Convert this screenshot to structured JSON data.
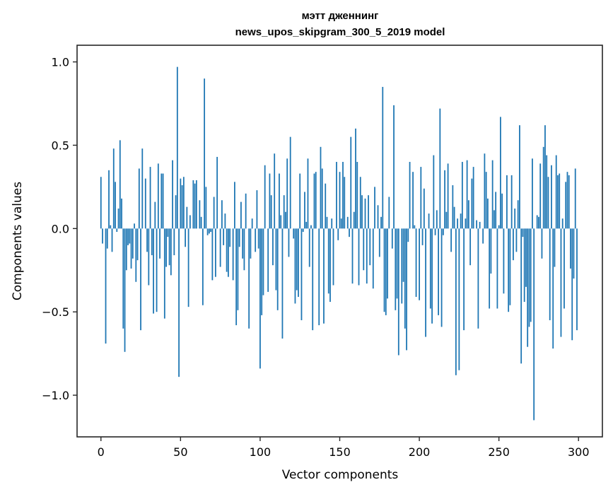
{
  "chart_data": {
    "type": "bar",
    "title": "мэтт дженнинг",
    "subtitle": "news_upos_skipgram_300_5_2019 model",
    "xlabel": "Vector components",
    "ylabel": "Components values",
    "xlim": [
      -15,
      315
    ],
    "ylim": [
      -1.25,
      1.1
    ],
    "x_ticks": [
      0,
      50,
      100,
      150,
      200,
      250,
      300
    ],
    "x_tick_labels": [
      "0",
      "50",
      "100",
      "150",
      "200",
      "250",
      "300"
    ],
    "y_ticks": [
      -1.0,
      -0.5,
      0.0,
      0.5,
      1.0
    ],
    "y_tick_labels": [
      "−1.0",
      "−0.5",
      "0.0",
      "0.5",
      "1.0"
    ],
    "grid": false,
    "bar_color": "#1f77b4",
    "values": [
      0.31,
      -0.09,
      0.0,
      -0.69,
      -0.12,
      0.35,
      0.02,
      -0.14,
      0.48,
      0.28,
      -0.02,
      0.12,
      0.53,
      0.18,
      -0.6,
      -0.74,
      -0.25,
      -0.1,
      -0.09,
      -0.24,
      -0.18,
      0.03,
      -0.32,
      -0.19,
      0.36,
      -0.61,
      0.48,
      0.0,
      0.3,
      -0.14,
      -0.34,
      0.37,
      -0.16,
      -0.51,
      0.16,
      -0.5,
      0.39,
      -0.18,
      0.33,
      0.33,
      -0.54,
      -0.23,
      -0.05,
      -0.22,
      -0.28,
      0.41,
      -0.16,
      0.2,
      0.97,
      -0.89,
      0.3,
      0.26,
      0.31,
      -0.11,
      0.13,
      -0.47,
      0.08,
      0.0,
      0.29,
      0.27,
      0.29,
      0.0,
      0.17,
      0.07,
      -0.46,
      0.9,
      0.25,
      -0.04,
      -0.03,
      -0.02,
      -0.31,
      0.19,
      -0.29,
      0.43,
      0.0,
      -0.23,
      0.17,
      -0.1,
      0.09,
      -0.26,
      -0.29,
      -0.11,
      0.0,
      -0.31,
      0.28,
      -0.58,
      -0.49,
      -0.11,
      0.16,
      -0.18,
      -0.25,
      0.21,
      0.0,
      -0.6,
      -0.18,
      0.06,
      0.0,
      -0.14,
      0.23,
      -0.12,
      -0.84,
      -0.52,
      -0.4,
      0.38,
      0.0,
      -0.38,
      0.33,
      0.2,
      -0.22,
      0.45,
      -0.37,
      -0.49,
      0.33,
      0.08,
      -0.66,
      0.2,
      0.1,
      0.42,
      -0.17,
      0.55,
      0.0,
      -0.06,
      -0.45,
      -0.37,
      -0.41,
      0.33,
      -0.55,
      -0.02,
      0.22,
      0.04,
      0.42,
      -0.23,
      0.02,
      -0.61,
      0.33,
      0.34,
      0.0,
      -0.58,
      0.49,
      0.36,
      -0.57,
      0.27,
      0.07,
      -0.39,
      -0.44,
      0.06,
      -0.34,
      0.0,
      0.4,
      -0.07,
      0.34,
      0.06,
      0.4,
      0.31,
      0.0,
      0.07,
      -0.05,
      0.55,
      -0.33,
      0.1,
      0.6,
      0.4,
      -0.34,
      0.31,
      0.2,
      -0.25,
      0.18,
      -0.33,
      0.2,
      -0.22,
      0.0,
      -0.36,
      0.25,
      0.0,
      0.14,
      -0.17,
      0.07,
      0.85,
      -0.5,
      -0.52,
      -0.42,
      0.19,
      0.0,
      -0.12,
      0.74,
      -0.49,
      -0.42,
      -0.76,
      0.0,
      -0.45,
      -0.32,
      -0.6,
      -0.73,
      -0.08,
      0.4,
      0.0,
      0.34,
      0.02,
      -0.41,
      0.0,
      -0.43,
      0.37,
      -0.1,
      0.24,
      -0.65,
      0.0,
      0.09,
      -0.48,
      -0.57,
      0.44,
      -0.04,
      0.11,
      -0.52,
      0.72,
      -0.59,
      -0.04,
      0.35,
      0.1,
      0.39,
      0.0,
      -0.14,
      0.26,
      0.13,
      -0.88,
      0.06,
      -0.85,
      0.09,
      0.4,
      -0.61,
      0.06,
      0.41,
      0.17,
      -0.22,
      0.3,
      0.37,
      0.0,
      0.05,
      -0.6,
      0.04,
      0.0,
      -0.09,
      0.45,
      0.34,
      0.18,
      -0.48,
      -0.27,
      0.41,
      0.11,
      0.22,
      -0.48,
      0.02,
      0.67,
      0.21,
      -0.39,
      0.0,
      0.32,
      -0.5,
      -0.46,
      0.32,
      -0.19,
      0.12,
      -0.14,
      0.17,
      0.62,
      -0.81,
      -0.05,
      -0.44,
      -0.35,
      -0.71,
      -0.59,
      -0.56,
      0.42,
      -1.15,
      0.0,
      0.08,
      0.07,
      0.39,
      -0.18,
      0.49,
      0.62,
      0.44,
      0.31,
      -0.55,
      0.38,
      -0.72,
      -0.23,
      0.44,
      0.32,
      0.33,
      -0.65,
      0.06,
      -0.48,
      0.28,
      0.34,
      0.32,
      -0.24,
      -0.67,
      -0.3,
      0.36,
      -0.61
    ]
  }
}
